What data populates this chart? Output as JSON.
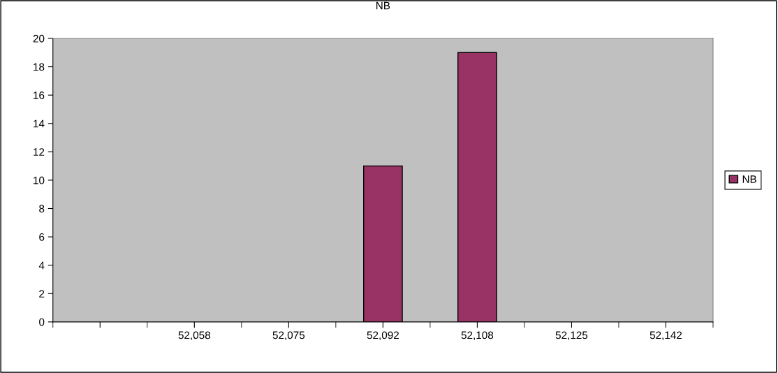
{
  "chart_data": {
    "type": "bar",
    "title": "NB",
    "categories": [
      null,
      "52,058",
      "52,075",
      "52,092",
      "52,108",
      "52,125",
      "52,142"
    ],
    "series": [
      {
        "name": "NB",
        "color": "#993366",
        "values": [
          0,
          0,
          0,
          11,
          19,
          0,
          0
        ]
      }
    ],
    "ylim": [
      0,
      20
    ],
    "yticks": [
      0,
      2,
      4,
      6,
      8,
      10,
      12,
      14,
      16,
      18,
      20
    ],
    "grid": false,
    "legend": "right"
  }
}
